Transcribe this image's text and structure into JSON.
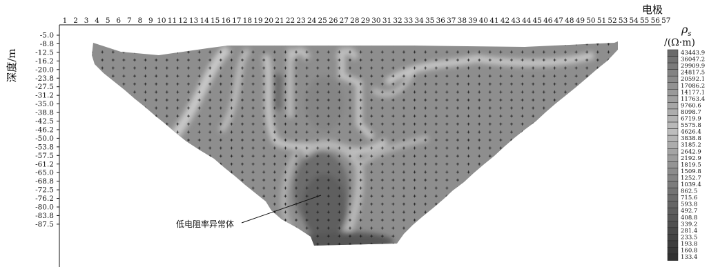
{
  "electrode_label": "电极",
  "electrodes": [
    "1",
    "2",
    "3",
    "4",
    "5",
    "6",
    "7",
    "8",
    "9",
    "10",
    "11",
    "12",
    "13",
    "14",
    "15",
    "16",
    "17",
    "18",
    "19",
    "20",
    "21",
    "22",
    "23",
    "24",
    "25",
    "26",
    "27",
    "28",
    "29",
    "30",
    "31",
    "32",
    "33",
    "34",
    "35",
    "36",
    "37",
    "38",
    "39",
    "40",
    "41",
    "42",
    "43",
    "44",
    "45",
    "46",
    "47",
    "48",
    "49",
    "50",
    "51",
    "52",
    "53",
    "54",
    "55",
    "56",
    "57"
  ],
  "depth_label": "深度/m",
  "depths": [
    "-5.0",
    "-8.8",
    "-12.5",
    "-16.2",
    "-20.0",
    "-23.8",
    "-27.5",
    "-31.2",
    "-35.0",
    "-38.8",
    "-42.5",
    "-46.2",
    "-50.0",
    "-53.8",
    "-57.5",
    "-61.2",
    "-65.0",
    "-68.8",
    "-72.5",
    "-76.2",
    "-80.0",
    "-83.8",
    "-87.5"
  ],
  "legend": {
    "symbol": "ρ",
    "symbol_sub": "s",
    "unit": "/(Ω·m)",
    "values": [
      "43443.9",
      "36047.2",
      "29909.9",
      "24817.5",
      "20592.1",
      "17086.2",
      "14177.1",
      "11763.4",
      "9760.6",
      "8098.7",
      "6719.9",
      "5575.8",
      "4626.4",
      "3838.8",
      "3185.2",
      "2642.9",
      "2192.9",
      "1819.5",
      "1509.8",
      "1252.7",
      "1039.4",
      "862.5",
      "715.6",
      "593.8",
      "492.7",
      "408.8",
      "339.2",
      "281.4",
      "233.5",
      "193.8",
      "160.8",
      "133.4"
    ],
    "colors": [
      "#6a6a6a",
      "#737373",
      "#7b7b7b",
      "#838383",
      "#8b8b8b",
      "#929292",
      "#999999",
      "#a0a0a0",
      "#a6a6a6",
      "#adadad",
      "#b3b3b3",
      "#b9b9b9",
      "#bdbdbd",
      "#b4b4b4",
      "#acacac",
      "#a4a4a4",
      "#9c9c9c",
      "#949494",
      "#8c8c8c",
      "#848484",
      "#7c7c7c",
      "#747474",
      "#6c6c6c",
      "#656565",
      "#5e5e5e",
      "#575757",
      "#505050",
      "#494949",
      "#434343",
      "#3d3d3d",
      "#373737",
      "#313131"
    ]
  },
  "annotation": "低电阻率异常体"
}
